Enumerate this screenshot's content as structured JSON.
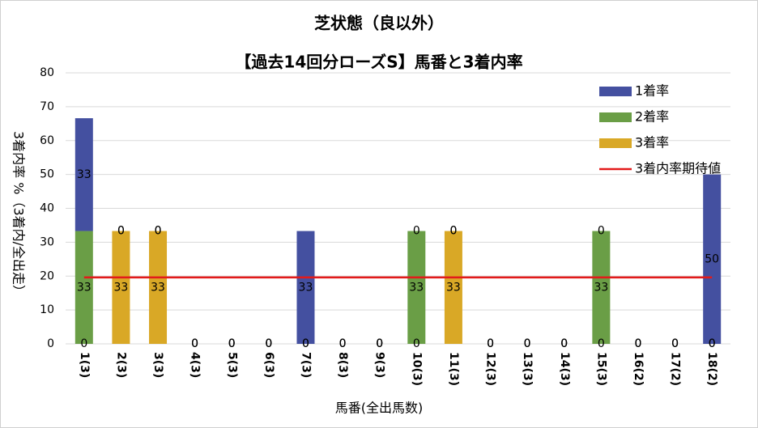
{
  "chart_data": {
    "type": "bar",
    "stacked": true,
    "title": "芝状態（良以外）",
    "subtitle": "【過去14回分ローズS】馬番と3着内率",
    "x_label": "馬番(全出馬数)",
    "y_label": "3着内率 %（3着内/全出走）",
    "categories": [
      "1(3)",
      "2(3)",
      "3(3)",
      "4(3)",
      "5(3)",
      "6(3)",
      "7(3)",
      "8(3)",
      "9(3)",
      "10(3)",
      "11(3)",
      "12(3)",
      "13(3)",
      "14(3)",
      "15(3)",
      "16(2)",
      "17(2)",
      "18(2)"
    ],
    "series": [
      {
        "name": "3着率",
        "color": "#d9a826",
        "values": [
          0,
          33.3,
          33.3,
          0,
          0,
          0,
          0,
          0,
          0,
          0,
          33.3,
          0,
          0,
          0,
          0,
          0,
          0,
          0
        ],
        "value_labels": [
          "0",
          "33",
          "33",
          "0",
          "0",
          "0",
          "0",
          "0",
          "0",
          "0",
          "33",
          "0",
          "0",
          "0",
          "0",
          "0",
          "0",
          "0"
        ]
      },
      {
        "name": "2着率",
        "color": "#6a9e46",
        "values": [
          33.3,
          0,
          0,
          0,
          0,
          0,
          0,
          0,
          0,
          33.3,
          0,
          0,
          0,
          0,
          33.3,
          0,
          0,
          0
        ],
        "value_labels": [
          "33",
          "0",
          "0",
          "0",
          "0",
          "0",
          "0",
          "0",
          "0",
          "33",
          "0",
          "0",
          "0",
          "0",
          "33",
          "0",
          "0",
          "0"
        ]
      },
      {
        "name": "1着率",
        "color": "#4450a0",
        "values": [
          33.3,
          0,
          0,
          0,
          0,
          0,
          33.3,
          0,
          0,
          0,
          0,
          0,
          0,
          0,
          0,
          0,
          0,
          50
        ],
        "value_labels": [
          "33",
          "0",
          "0",
          "0",
          "0",
          "0",
          "33",
          "0",
          "0",
          "0",
          "0",
          "0",
          "0",
          "0",
          "0",
          "0",
          "0",
          "50"
        ]
      },
      {
        "name": "3着内率期待値",
        "color": "#e31a1a",
        "type": "line",
        "values": [
          19.6,
          19.6,
          19.6,
          19.6,
          19.6,
          19.6,
          19.6,
          19.6,
          19.6,
          19.6,
          19.6,
          19.6,
          19.6,
          19.6,
          19.6,
          19.6,
          19.6,
          19.6
        ]
      }
    ],
    "legend_order": [
      2,
      1,
      0,
      3
    ],
    "legend": "upper right",
    "ylim": [
      0,
      80
    ],
    "yticks": [
      0,
      10,
      20,
      30,
      40,
      50,
      60,
      70,
      80
    ],
    "grid": true
  }
}
